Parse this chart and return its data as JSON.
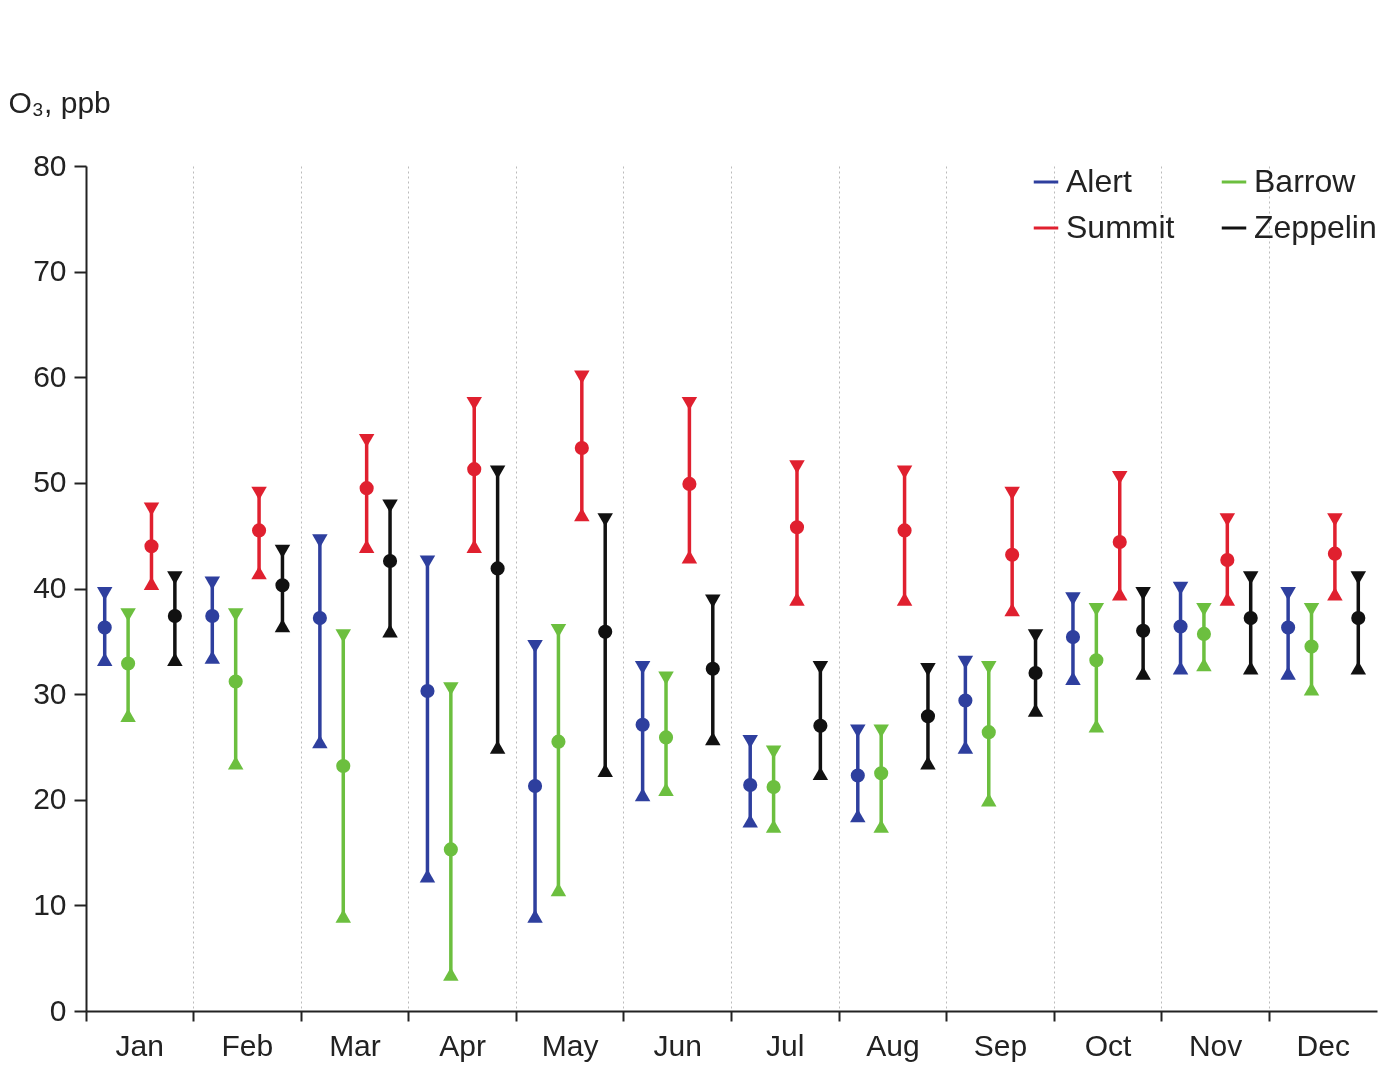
{
  "chart_data": {
    "type": "scatter",
    "ylabel": "O₃, ppb",
    "categories": [
      "Jan",
      "Feb",
      "Mar",
      "Apr",
      "May",
      "Jun",
      "Jul",
      "Aug",
      "Sep",
      "Oct",
      "Nov",
      "Dec"
    ],
    "series": [
      {
        "name": "Alert",
        "color": "#2e3f9e",
        "values": [
          36.3,
          37.4,
          37.2,
          30.3,
          21.3,
          27.1,
          21.4,
          22.3,
          29.4,
          35.4,
          36.4,
          36.3
        ],
        "errors": [
          [
            33.3,
            39.5
          ],
          [
            33.5,
            40.5
          ],
          [
            25.5,
            44.5
          ],
          [
            12.8,
            42.5
          ],
          [
            9,
            34.5
          ],
          [
            20.5,
            32.5
          ],
          [
            18,
            25.5
          ],
          [
            18.5,
            26.5
          ],
          [
            25,
            33
          ],
          [
            31.5,
            39
          ],
          [
            32.5,
            40
          ],
          [
            32,
            39.5
          ]
        ]
      },
      {
        "name": "Barrow",
        "color": "#6cbf3f",
        "values": [
          32.9,
          31.2,
          23.2,
          15.3,
          25.5,
          25.9,
          21.2,
          22.5,
          26.4,
          33.2,
          35.7,
          34.5
        ],
        "errors": [
          [
            28,
            37.5
          ],
          [
            23.5,
            37.5
          ],
          [
            9,
            35.5
          ],
          [
            3.5,
            30.5
          ],
          [
            11.5,
            36
          ],
          [
            21,
            31.5
          ],
          [
            17.5,
            24.5
          ],
          [
            17.5,
            26.5
          ],
          [
            20,
            32.5
          ],
          [
            27,
            38
          ],
          [
            32.8,
            38
          ],
          [
            30.5,
            38
          ]
        ]
      },
      {
        "name": "Summit",
        "color": "#e0202f",
        "values": [
          44,
          45.5,
          49.5,
          51.3,
          53.3,
          49.9,
          45.8,
          45.5,
          43.2,
          44.4,
          42.7,
          43.3
        ],
        "errors": [
          [
            40.5,
            47.5
          ],
          [
            41.5,
            49
          ],
          [
            44,
            54
          ],
          [
            44,
            57.5
          ],
          [
            47,
            60
          ],
          [
            43,
            57.5
          ],
          [
            39,
            51.5
          ],
          [
            39,
            51
          ],
          [
            38,
            49
          ],
          [
            39.5,
            50.5
          ],
          [
            39,
            46.5
          ],
          [
            39.5,
            46.5
          ]
        ]
      },
      {
        "name": "Zeppelin",
        "color": "#111111",
        "values": [
          37.4,
          40.3,
          42.6,
          41.9,
          35.9,
          32.4,
          27,
          27.9,
          32,
          36,
          37.2,
          37.2
        ],
        "errors": [
          [
            33.3,
            41
          ],
          [
            36.5,
            43.5
          ],
          [
            36,
            47.8
          ],
          [
            25,
            51
          ],
          [
            22.8,
            46.5
          ],
          [
            25.8,
            38.8
          ],
          [
            22.5,
            32.5
          ],
          [
            23.5,
            32.3
          ],
          [
            28.5,
            35.5
          ],
          [
            32,
            39.5
          ],
          [
            32.5,
            41
          ],
          [
            32.5,
            41
          ]
        ]
      }
    ],
    "ylim": [
      0,
      80
    ],
    "yticks": [
      0,
      10,
      20,
      30,
      40,
      50,
      60,
      70,
      80
    ],
    "grid": "x",
    "legend": "top right",
    "marker": "circle"
  }
}
